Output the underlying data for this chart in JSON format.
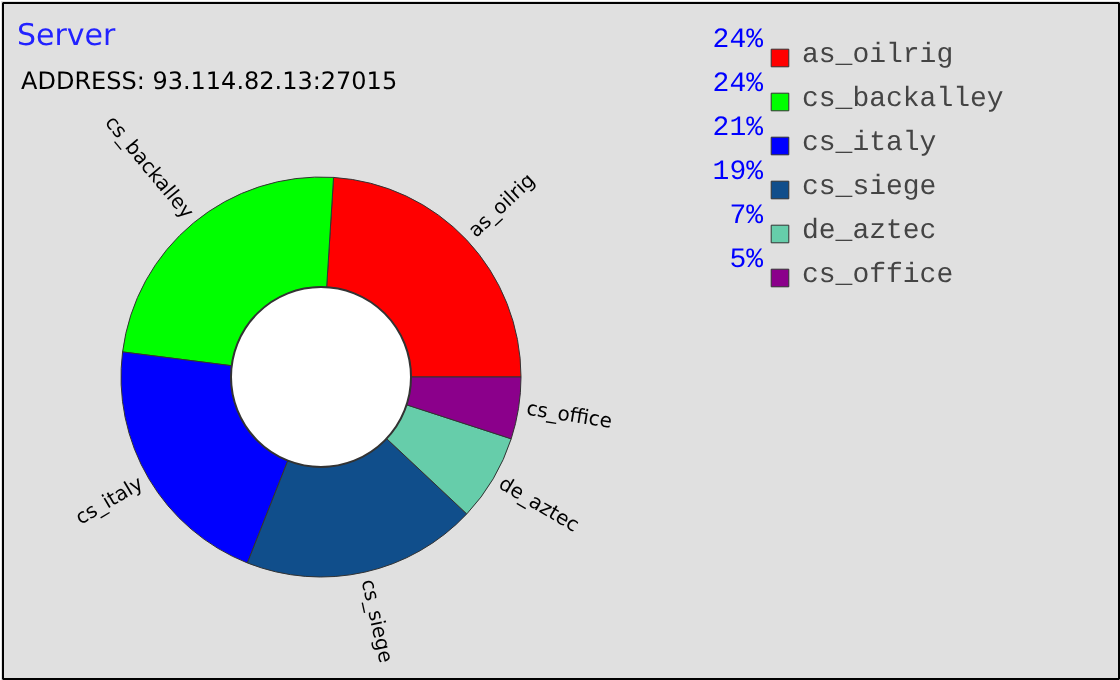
{
  "chart_data": {
    "type": "donut",
    "title": "Server",
    "annotations": [
      "ADDRESS: 93.114.82.13:27015"
    ],
    "categories": [
      "as_oilrig",
      "cs_backalley",
      "cs_italy",
      "cs_siege",
      "de_aztec",
      "cs_office"
    ],
    "values": [
      24,
      24,
      21,
      19,
      7,
      5
    ],
    "colors": [
      "#ff0000",
      "#00ff00",
      "#0000ff",
      "#104e8b",
      "#66cdaa",
      "#8b008b"
    ],
    "value_labels": [
      "24%",
      "24%",
      "21%",
      "19%",
      "7%",
      "5%"
    ],
    "legend": "right"
  }
}
